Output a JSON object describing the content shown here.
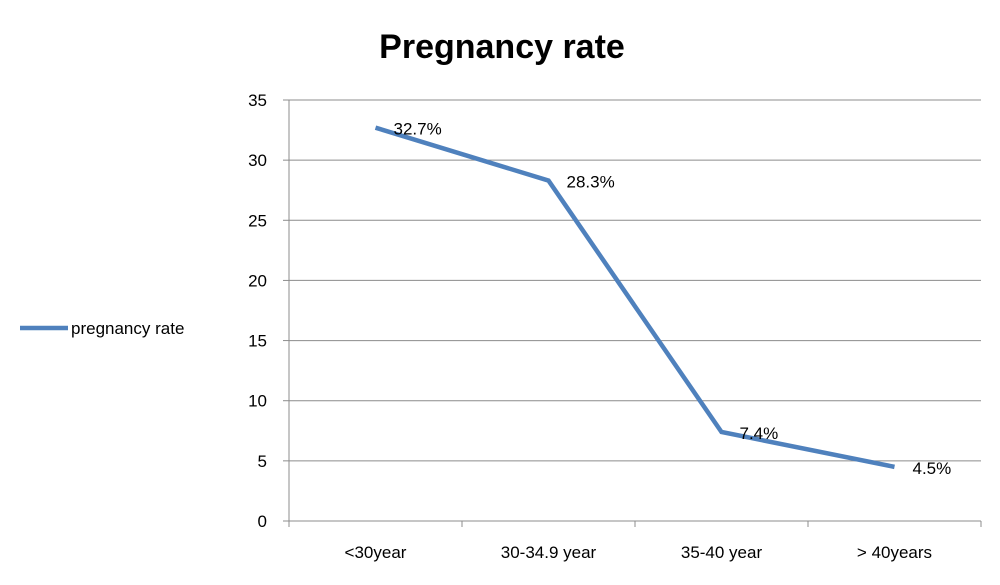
{
  "chart_data": {
    "type": "line",
    "title": "Pregnancy rate",
    "categories": [
      "<30year",
      "30-34.9 year",
      "35-40 year",
      "> 40years"
    ],
    "series": [
      {
        "name": "pregnancy rate",
        "values": [
          32.7,
          28.3,
          7.4,
          4.5
        ],
        "data_labels": [
          "32.7%",
          "28.3%",
          "7.4%",
          "4.5%"
        ],
        "color": "#4F81BD"
      }
    ],
    "ylim": [
      0,
      35
    ],
    "yticks": [
      0,
      5,
      10,
      15,
      20,
      25,
      30,
      35
    ],
    "grid": true,
    "legend_position": "left"
  }
}
